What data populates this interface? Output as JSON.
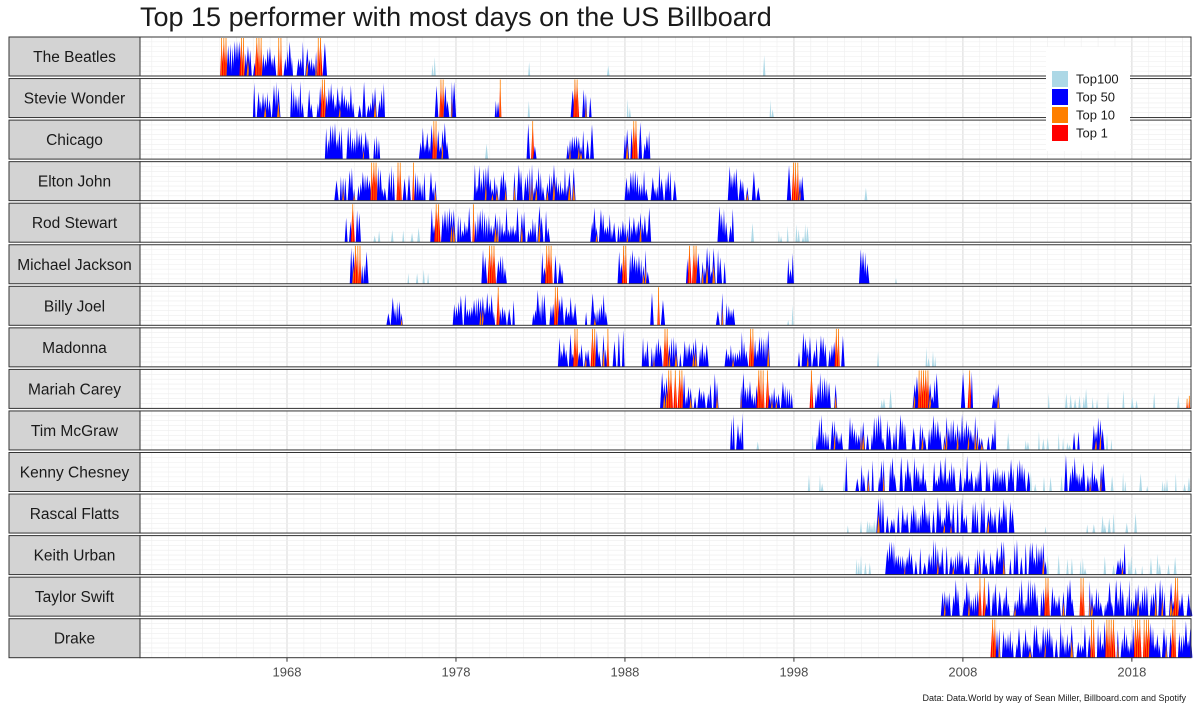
{
  "chart_data": {
    "type": "area",
    "title": "Top 15 performer with most days on the US Billboard",
    "caption": "Data: Data.World by way of Sean Miller, Billboard.com and Spotify",
    "x_ticks": [
      "1968",
      "1978",
      "1988",
      "1998",
      "2008",
      "2018"
    ],
    "x_tick_values": [
      1968,
      1978,
      1988,
      1998,
      2008,
      2018
    ],
    "xlim": [
      1959.3,
      2021.5
    ],
    "legend": {
      "position": "top-right",
      "items": [
        {
          "label": "Top100",
          "color": "#add8e6"
        },
        {
          "label": "Top 50",
          "color": "#0000ff"
        },
        {
          "label": "Top 10",
          "color": "#ff7f00"
        },
        {
          "label": "Top 1",
          "color": "#ff0000"
        }
      ]
    },
    "colors": {
      "Top100": "#add8e6",
      "Top 50": "#0000ff",
      "Top 10": "#ff7f00",
      "Top 1": "#ff0000"
    },
    "performers": [
      {
        "name": "The Beatles",
        "start": 1964.0,
        "end": 1996.3,
        "top1": [
          [
            1964.0,
            1964.5
          ],
          [
            1965.2,
            1965.5
          ],
          [
            1966.2,
            1966.5
          ],
          [
            1967.3,
            1967.7
          ],
          [
            1969.8,
            1970.2
          ]
        ],
        "dense": [
          [
            1964.0,
            1970.3
          ]
        ],
        "sparse": [
          [
            1976.6,
            1976.9
          ],
          [
            1982.1,
            1982.5
          ],
          [
            1986.9,
            1987.1
          ],
          [
            1995.8,
            1996.3
          ]
        ]
      },
      {
        "name": "Stevie Wonder",
        "start": 1964.5,
        "end": 1997.0,
        "top1": [
          [
            1970.0,
            1970.3
          ],
          [
            1977.0,
            1977.3
          ],
          [
            1980.5,
            1980.8
          ],
          [
            1985.0,
            1985.3
          ]
        ],
        "dense": [
          [
            1966.0,
            1973.8
          ],
          [
            1976.8,
            1978.0
          ],
          [
            1980.3,
            1981.0
          ],
          [
            1984.8,
            1986.3
          ]
        ],
        "sparse": [
          [
            1982.0,
            1982.5
          ],
          [
            1988.0,
            1988.3
          ],
          [
            1996.6,
            1997.0
          ]
        ]
      },
      {
        "name": "Chicago",
        "start": 1969.8,
        "end": 1989.6,
        "top1": [
          [
            1976.6,
            1976.9
          ],
          [
            1982.3,
            1982.6
          ],
          [
            1988.5,
            1988.8
          ]
        ],
        "dense": [
          [
            1970.0,
            1973.5
          ],
          [
            1975.8,
            1977.5
          ],
          [
            1982.2,
            1982.8
          ],
          [
            1984.5,
            1986.5
          ],
          [
            1988.0,
            1989.5
          ]
        ],
        "sparse": [
          [
            1979.5,
            1980.0
          ]
        ]
      },
      {
        "name": "Elton John",
        "start": 1970.8,
        "end": 2002.5,
        "top1": [
          [
            1973.0,
            1973.3
          ],
          [
            1974.5,
            1974.8
          ],
          [
            1975.3,
            1975.6
          ],
          [
            1997.8,
            1998.3
          ]
        ],
        "dense": [
          [
            1970.8,
            1977.0
          ],
          [
            1979.0,
            1985.0
          ],
          [
            1988.0,
            1991.0
          ],
          [
            1994.0,
            1996.0
          ],
          [
            1997.6,
            1998.6
          ]
        ],
        "sparse": [
          [
            2002.0,
            2002.5
          ]
        ]
      },
      {
        "name": "Rod Stewart",
        "start": 1971.5,
        "end": 1999.0,
        "top1": [
          [
            1971.8,
            1972.0
          ],
          [
            1976.8,
            1977.1
          ],
          [
            1978.8,
            1979.1
          ]
        ],
        "dense": [
          [
            1971.5,
            1972.3
          ],
          [
            1976.5,
            1983.5
          ],
          [
            1986.0,
            1989.5
          ],
          [
            1993.5,
            1994.5
          ]
        ],
        "sparse": [
          [
            1972.8,
            1975.8
          ],
          [
            1995.5,
            1999.0
          ]
        ]
      },
      {
        "name": "Michael Jackson",
        "start": 1971.8,
        "end": 2004.3,
        "top1": [
          [
            1972.0,
            1972.4
          ],
          [
            1979.8,
            1980.3
          ],
          [
            1983.3,
            1983.8
          ],
          [
            1987.8,
            1988.3
          ],
          [
            1991.8,
            1992.3
          ]
        ],
        "dense": [
          [
            1971.8,
            1972.8
          ],
          [
            1979.6,
            1981.0
          ],
          [
            1983.0,
            1984.3
          ],
          [
            1987.6,
            1989.6
          ],
          [
            1991.6,
            1994.0
          ],
          [
            1997.6,
            1998.0
          ],
          [
            2001.8,
            2002.4
          ]
        ],
        "sparse": [
          [
            1975.0,
            1976.5
          ],
          [
            2004.0,
            2004.3
          ]
        ]
      },
      {
        "name": "Billy Joel",
        "start": 1974.0,
        "end": 1998.0,
        "top1": [
          [
            1980.3,
            1980.6
          ],
          [
            1983.8,
            1984.1
          ],
          [
            1989.8,
            1990.1
          ]
        ],
        "dense": [
          [
            1974.0,
            1974.8
          ],
          [
            1977.8,
            1981.5
          ],
          [
            1982.5,
            1987.0
          ],
          [
            1989.5,
            1990.5
          ],
          [
            1993.5,
            1994.5
          ]
        ],
        "sparse": [
          [
            1997.5,
            1998.0
          ]
        ]
      },
      {
        "name": "Madonna",
        "start": 1984.0,
        "end": 2006.5,
        "top1": [
          [
            1985.0,
            1985.3
          ],
          [
            1986.0,
            1986.3
          ],
          [
            1986.9,
            1987.2
          ],
          [
            1990.3,
            1990.6
          ],
          [
            1995.3,
            1995.6
          ],
          [
            2000.5,
            2000.8
          ]
        ],
        "dense": [
          [
            1984.0,
            1988.0
          ],
          [
            1989.0,
            1993.0
          ],
          [
            1994.0,
            1996.5
          ],
          [
            1998.3,
            2001.0
          ]
        ],
        "sparse": [
          [
            2002.8,
            2003.2
          ],
          [
            2005.8,
            2006.5
          ]
        ]
      },
      {
        "name": "Mariah Carey",
        "start": 1990.2,
        "end": 2021.5,
        "top1": [
          [
            1990.5,
            1991.5
          ],
          [
            1995.8,
            1996.5
          ],
          [
            1999.0,
            1999.3
          ],
          [
            2005.3,
            2006.0
          ],
          [
            2008.2,
            2008.5
          ],
          [
            2021.0,
            2021.5
          ]
        ],
        "dense": [
          [
            1990.2,
            1993.5
          ],
          [
            1994.8,
            1998.0
          ],
          [
            1999.0,
            2000.5
          ],
          [
            2005.0,
            2006.5
          ],
          [
            2008.0,
            2008.6
          ],
          [
            2009.8,
            2010.2
          ]
        ],
        "sparse": [
          [
            2003.0,
            2004.0
          ],
          [
            2013.0,
            2021.5
          ]
        ]
      },
      {
        "name": "Tim McGraw",
        "start": 1994.3,
        "end": 2021.3,
        "top1": [],
        "dense": [
          [
            1994.3,
            1995.0
          ],
          [
            1999.3,
            2010.0
          ],
          [
            2014.5,
            2015.0
          ],
          [
            2015.5,
            2016.3
          ]
        ],
        "sparse": [
          [
            1995.5,
            1996.0
          ],
          [
            1998.5,
            2017.0
          ],
          [
            2020.8,
            2021.3
          ]
        ]
      },
      {
        "name": "Kenny Chesney",
        "start": 1998.5,
        "end": 2021.5,
        "top1": [],
        "dense": [
          [
            2001.0,
            2012.0
          ],
          [
            2014.0,
            2016.5
          ]
        ],
        "sparse": [
          [
            1998.5,
            2021.5
          ]
        ]
      },
      {
        "name": "Rascal Flatts",
        "start": 2000.8,
        "end": 2018.3,
        "top1": [],
        "dense": [
          [
            2003.0,
            2011.0
          ]
        ],
        "sparse": [
          [
            2000.8,
            2018.3
          ]
        ]
      },
      {
        "name": "Keith Urban",
        "start": 2000.8,
        "end": 2021.5,
        "top1": [],
        "dense": [
          [
            2003.5,
            2013.0
          ],
          [
            2017.0,
            2017.6
          ]
        ],
        "sparse": [
          [
            2000.8,
            2021.5
          ]
        ]
      },
      {
        "name": "Taylor Swift",
        "start": 2006.8,
        "end": 2021.5,
        "top1": [
          [
            2009.0,
            2009.3
          ],
          [
            2012.8,
            2013.1
          ],
          [
            2014.8,
            2015.2
          ],
          [
            2020.5,
            2020.8
          ]
        ],
        "dense": [
          [
            2006.8,
            2021.5
          ]
        ],
        "sparse": []
      },
      {
        "name": "Drake",
        "start": 2009.5,
        "end": 2021.5,
        "top1": [
          [
            2009.6,
            2010.0
          ],
          [
            2015.5,
            2016.0
          ],
          [
            2016.5,
            2017.0
          ],
          [
            2018.2,
            2019.0
          ],
          [
            2020.3,
            2020.6
          ]
        ],
        "dense": [
          [
            2009.5,
            2021.5
          ]
        ],
        "sparse": []
      }
    ]
  }
}
